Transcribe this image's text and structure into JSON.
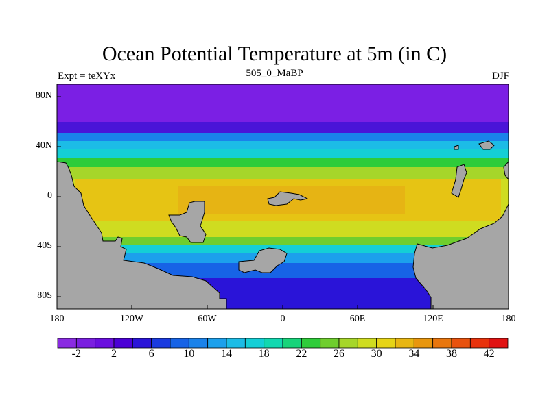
{
  "plot": {
    "title": "Ocean Potential Temperature at 5m (in C)",
    "left_label": "Expt = teXYx",
    "center_label": "505_0_MaBP",
    "right_label": "DJF"
  },
  "axes": {
    "lat_ticks": [
      "80N",
      "40N",
      "0",
      "40S",
      "80S"
    ],
    "lon_ticks": [
      "180",
      "120W",
      "60W",
      "0",
      "60E",
      "120E",
      "180"
    ]
  },
  "colorbar": {
    "colors": [
      "#8a2be2",
      "#7a1fe0",
      "#6a0fdf",
      "#4b00d6",
      "#2a14d8",
      "#1a3be0",
      "#1763e6",
      "#1a82ea",
      "#1ca0ec",
      "#1cbce6",
      "#14cfd6",
      "#12d8b0",
      "#18d47a",
      "#2ecc3a",
      "#6fce2e",
      "#a6d62a",
      "#cfdc20",
      "#e6d416",
      "#e8b612",
      "#e8960e",
      "#e8760e",
      "#e8520e",
      "#e8320c",
      "#e01212"
    ],
    "labels": [
      "-2",
      "2",
      "6",
      "10",
      "14",
      "18",
      "22",
      "26",
      "30",
      "34",
      "38",
      "42"
    ]
  },
  "colors": {
    "land": "#a6a6a6",
    "polar": "#7b1fe4",
    "subpolar": "#4a14d8",
    "temperate_cool": "#1ca0ec",
    "temperate_warm": "#2ecc3a",
    "subtropical": "#cfdc20",
    "tropical": "#e6b414",
    "southern_cold": "#1763e6",
    "southern_deep": "#2a14d8"
  }
}
